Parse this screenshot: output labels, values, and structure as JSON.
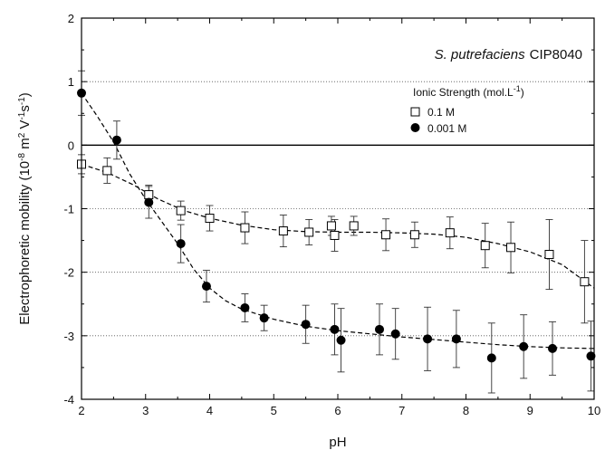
{
  "chart_data": {
    "type": "scatter",
    "title": "",
    "annotation": {
      "organism": "S. putrefaciens",
      "strain": "CIP8040"
    },
    "xlabel": "pH",
    "ylabel": {
      "prefix": "Electrophoretic mobility (10",
      "exp1": "-8",
      "mid1": " m",
      "exp2": "2",
      "mid2": " V",
      "exp3": "-1",
      "mid3": "s",
      "exp4": "-1",
      "suffix": ")"
    },
    "xlim": [
      2,
      10
    ],
    "ylim": [
      -4,
      2
    ],
    "xticks": [
      2,
      3,
      4,
      5,
      6,
      7,
      8,
      9,
      10
    ],
    "yticks": [
      -4,
      -3,
      -2,
      -1,
      0,
      1,
      2
    ],
    "grid": "dotted horizontal",
    "legend": {
      "title": "Ionic Strength (mol.L",
      "title_exp": "-1",
      "title_suffix": ")",
      "placement": "top-right",
      "entries": [
        "0.1 M",
        "0.001 M"
      ]
    },
    "series": [
      {
        "name": "0.1 M",
        "marker": "open-square",
        "points": [
          {
            "x": 2.0,
            "y": -0.3,
            "err": 0.15
          },
          {
            "x": 2.4,
            "y": -0.4,
            "err": 0.2
          },
          {
            "x": 3.05,
            "y": -0.78,
            "err": 0.15
          },
          {
            "x": 3.55,
            "y": -1.03,
            "err": 0.15
          },
          {
            "x": 4.0,
            "y": -1.15,
            "err": 0.2
          },
          {
            "x": 4.55,
            "y": -1.3,
            "err": 0.25
          },
          {
            "x": 5.15,
            "y": -1.35,
            "err": 0.25
          },
          {
            "x": 5.55,
            "y": -1.37,
            "err": 0.2
          },
          {
            "x": 5.9,
            "y": -1.27,
            "err": 0.15
          },
          {
            "x": 5.95,
            "y": -1.42,
            "err": 0.25
          },
          {
            "x": 6.25,
            "y": -1.27,
            "err": 0.15
          },
          {
            "x": 6.75,
            "y": -1.41,
            "err": 0.25
          },
          {
            "x": 7.2,
            "y": -1.41,
            "err": 0.2
          },
          {
            "x": 7.75,
            "y": -1.38,
            "err": 0.25
          },
          {
            "x": 8.3,
            "y": -1.58,
            "err": 0.35
          },
          {
            "x": 8.7,
            "y": -1.61,
            "err": 0.4
          },
          {
            "x": 9.3,
            "y": -1.72,
            "err": 0.55
          },
          {
            "x": 9.85,
            "y": -2.15,
            "err": 0.65
          }
        ]
      },
      {
        "name": "0.001 M",
        "marker": "filled-circle",
        "points": [
          {
            "x": 2.0,
            "y": 0.82,
            "err": 0.35
          },
          {
            "x": 2.55,
            "y": 0.08,
            "err": 0.3
          },
          {
            "x": 3.05,
            "y": -0.9,
            "err": 0.25
          },
          {
            "x": 3.55,
            "y": -1.55,
            "err": 0.3
          },
          {
            "x": 3.95,
            "y": -2.22,
            "err": 0.25
          },
          {
            "x": 4.55,
            "y": -2.56,
            "err": 0.22
          },
          {
            "x": 4.85,
            "y": -2.72,
            "err": 0.2
          },
          {
            "x": 5.5,
            "y": -2.82,
            "err": 0.3
          },
          {
            "x": 5.95,
            "y": -2.9,
            "err": 0.4
          },
          {
            "x": 6.05,
            "y": -3.07,
            "err": 0.5
          },
          {
            "x": 6.65,
            "y": -2.9,
            "err": 0.4
          },
          {
            "x": 6.9,
            "y": -2.97,
            "err": 0.4
          },
          {
            "x": 7.4,
            "y": -3.05,
            "err": 0.5
          },
          {
            "x": 7.85,
            "y": -3.05,
            "err": 0.45
          },
          {
            "x": 8.4,
            "y": -3.35,
            "err": 0.55
          },
          {
            "x": 8.9,
            "y": -3.17,
            "err": 0.5
          },
          {
            "x": 9.35,
            "y": -3.2,
            "err": 0.42
          },
          {
            "x": 9.95,
            "y": -3.32,
            "err": 0.55
          }
        ]
      }
    ],
    "fit_curves": [
      {
        "series": "0.1 M",
        "style": "dashed",
        "x": [
          2.0,
          2.4,
          2.8,
          3.2,
          3.6,
          4.0,
          4.5,
          5.0,
          5.5,
          6.0,
          6.5,
          7.0,
          7.5,
          8.0,
          8.5,
          9.0,
          9.5,
          10.0
        ],
        "y": [
          -0.3,
          -0.43,
          -0.62,
          -0.85,
          -1.03,
          -1.15,
          -1.26,
          -1.33,
          -1.36,
          -1.37,
          -1.37,
          -1.38,
          -1.4,
          -1.45,
          -1.55,
          -1.68,
          -1.88,
          -2.25
        ]
      },
      {
        "series": "0.001 M",
        "style": "dashed",
        "x": [
          2.0,
          2.25,
          2.5,
          2.75,
          3.0,
          3.25,
          3.5,
          3.75,
          4.0,
          4.25,
          4.5,
          5.0,
          5.5,
          6.0,
          6.5,
          7.0,
          7.5,
          8.0,
          8.5,
          9.0,
          9.5,
          10.0
        ],
        "y": [
          0.82,
          0.45,
          0.05,
          -0.45,
          -0.85,
          -1.2,
          -1.55,
          -1.95,
          -2.25,
          -2.45,
          -2.58,
          -2.74,
          -2.85,
          -2.92,
          -2.97,
          -3.02,
          -3.06,
          -3.1,
          -3.14,
          -3.17,
          -3.19,
          -3.2
        ]
      }
    ]
  }
}
